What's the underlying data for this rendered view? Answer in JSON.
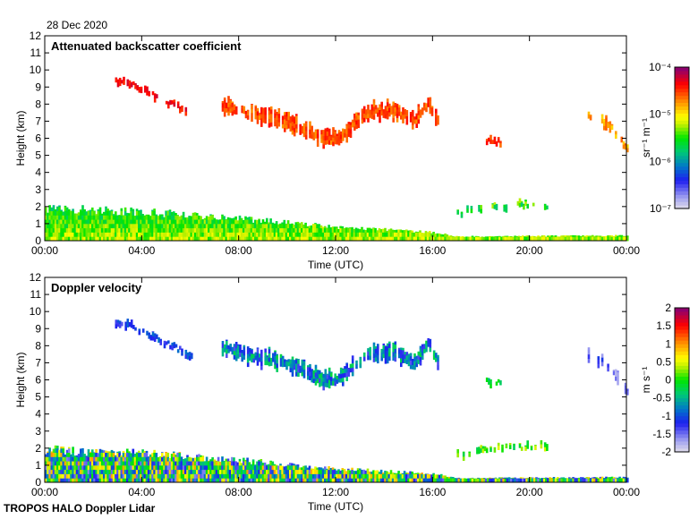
{
  "header": {
    "date": "28 Dec 2020"
  },
  "footer": {
    "label": "TROPOS HALO Doppler Lidar"
  },
  "chart_data": [
    {
      "type": "heatmap",
      "title": "Attenuated backscatter coefficient",
      "xlabel": "Time (UTC)",
      "ylabel": "Height (km)",
      "xlim": [
        0,
        24
      ],
      "ylim": [
        0,
        12
      ],
      "xticks": [
        "00:00",
        "04:00",
        "08:00",
        "12:00",
        "16:00",
        "20:00",
        "00:00"
      ],
      "yticks": [
        "0",
        "1",
        "2",
        "3",
        "4",
        "5",
        "6",
        "7",
        "8",
        "9",
        "10",
        "11",
        "12"
      ],
      "colorbar": {
        "label": "sr⁻¹ m⁻¹",
        "scale": "log",
        "range": [
          1e-07,
          0.0001
        ],
        "ticks": [
          "10⁻⁷",
          "10⁻⁶",
          "10⁻⁵",
          "10⁻⁴"
        ]
      },
      "value_units": "log10(sr-1 m-1)",
      "features": [
        {
          "name": "cirrus-early",
          "t": [
            2.9,
            3.5,
            4.5,
            5.5,
            6.1
          ],
          "center": [
            9.3,
            9.2,
            8.5,
            7.8,
            7.2
          ],
          "thickness": 0.35,
          "value": -4.35,
          "spread": 0.15,
          "fill": 0.8
        },
        {
          "name": "cirrus-main",
          "t": [
            7.3,
            8,
            9,
            10,
            11,
            11.5,
            12,
            12.5,
            13,
            13.5,
            14.5,
            15.2,
            15.8,
            16.2
          ],
          "center": [
            7.9,
            7.6,
            7.3,
            7.0,
            6.3,
            6.0,
            6.0,
            6.5,
            7.2,
            7.6,
            7.6,
            7.0,
            8.1,
            7.1
          ],
          "thickness": 0.8,
          "value": -4.55,
          "spread": 0.2,
          "fill": 0.9
        },
        {
          "name": "cirrus-late",
          "t": [
            18.2,
            18.8
          ],
          "center": [
            5.9,
            5.8
          ],
          "thickness": 0.35,
          "value": -4.5,
          "spread": 0.15,
          "fill": 0.8
        },
        {
          "name": "cirrus-night",
          "t": [
            22.4,
            23,
            23.5,
            24
          ],
          "center": [
            7.4,
            7.0,
            6.4,
            5.3
          ],
          "thickness": 0.6,
          "value": -4.75,
          "spread": 0.2,
          "fill": 0.6
        },
        {
          "name": "boundary-layer",
          "t": [
            0,
            4,
            8,
            12,
            16,
            17,
            24
          ],
          "base": [
            0,
            0,
            0,
            0,
            0,
            0,
            0
          ],
          "top": [
            1.9,
            1.7,
            1.3,
            0.8,
            0.5,
            0.25,
            0.3
          ],
          "value": -5.65,
          "spread": 0.25,
          "fill": 1
        },
        {
          "name": "aerosol-layer",
          "t": [
            17.0,
            18,
            19.5,
            20.7
          ],
          "center": [
            1.6,
            1.9,
            2.1,
            2.1
          ],
          "thickness": 0.35,
          "value": -5.5,
          "spread": 0.3,
          "fill": 0.45
        }
      ]
    },
    {
      "type": "heatmap",
      "title": "Doppler velocity",
      "xlabel": "Time (UTC)",
      "ylabel": "Height (km)",
      "xlim": [
        0,
        24
      ],
      "ylim": [
        0,
        12
      ],
      "xticks": [
        "00:00",
        "04:00",
        "08:00",
        "12:00",
        "16:00",
        "20:00",
        "00:00"
      ],
      "yticks": [
        "0",
        "1",
        "2",
        "3",
        "4",
        "5",
        "6",
        "7",
        "8",
        "9",
        "10",
        "11",
        "12"
      ],
      "colorbar": {
        "label": "m s⁻¹",
        "scale": "linear",
        "range": [
          -2,
          2
        ],
        "ticks": [
          "-2",
          "-1.5",
          "-1",
          "-0.5",
          "0",
          "0.5",
          "1",
          "1.5",
          "2"
        ]
      },
      "value_units": "m s-1",
      "features": [
        {
          "name": "cirrus-early",
          "t": [
            2.9,
            3.5,
            4.5,
            5.5,
            6.1
          ],
          "center": [
            9.3,
            9.2,
            8.5,
            7.8,
            7.2
          ],
          "thickness": 0.35,
          "value": -1.1,
          "spread": 0.3,
          "fill": 0.8
        },
        {
          "name": "cirrus-main",
          "t": [
            7.3,
            8,
            9,
            10,
            11,
            11.5,
            12,
            12.5,
            13,
            13.5,
            14.5,
            15.2,
            15.8,
            16.2
          ],
          "center": [
            7.9,
            7.6,
            7.3,
            7.0,
            6.3,
            6.0,
            6.0,
            6.5,
            7.2,
            7.6,
            7.6,
            7.0,
            8.1,
            7.1
          ],
          "thickness": 0.8,
          "value": -0.8,
          "spread": 0.6,
          "fill": 0.9
        },
        {
          "name": "cirrus-late",
          "t": [
            18.2,
            18.8
          ],
          "center": [
            5.9,
            5.8
          ],
          "thickness": 0.35,
          "value": -0.2,
          "spread": 0.3,
          "fill": 0.8
        },
        {
          "name": "cirrus-night",
          "t": [
            22.4,
            23,
            23.5,
            24
          ],
          "center": [
            7.4,
            7.0,
            6.4,
            5.3
          ],
          "thickness": 0.6,
          "value": -1.4,
          "spread": 0.4,
          "fill": 0.5
        },
        {
          "name": "boundary-layer",
          "t": [
            0,
            4,
            8,
            12,
            16,
            17,
            24
          ],
          "base": [
            0,
            0,
            0,
            0,
            0,
            0,
            0
          ],
          "top": [
            1.9,
            1.7,
            1.3,
            0.8,
            0.5,
            0.25,
            0.3
          ],
          "value": -0.3,
          "spread": 1.3,
          "fill": 1
        },
        {
          "name": "aerosol-layer",
          "t": [
            17.0,
            18,
            19.5,
            20.7
          ],
          "center": [
            1.6,
            1.9,
            2.1,
            2.1
          ],
          "thickness": 0.35,
          "value": 0.1,
          "spread": 0.4,
          "fill": 0.45
        }
      ]
    }
  ]
}
